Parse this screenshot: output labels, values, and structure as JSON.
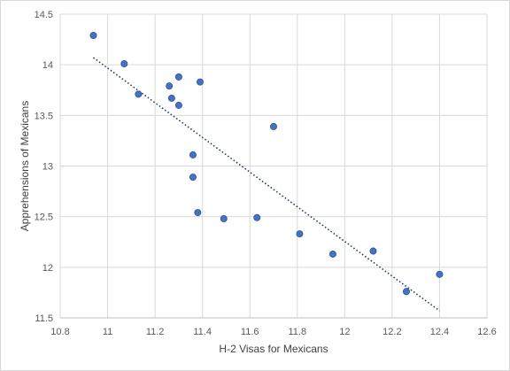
{
  "chart_data": {
    "type": "scatter",
    "title": "",
    "xlabel": "H-2 Visas for Mexicans",
    "ylabel": "Apprehensions of Mexicans",
    "xlim": [
      10.8,
      12.6
    ],
    "ylim": [
      11.5,
      14.5
    ],
    "xticks": [
      "10.8",
      "11",
      "11.2",
      "11.4",
      "11.6",
      "11.8",
      "12",
      "12.2",
      "12.4",
      "12.6"
    ],
    "yticks": [
      "11.5",
      "12",
      "12.5",
      "13",
      "13.5",
      "14",
      "14.5"
    ],
    "grid": true,
    "legend": "none",
    "marker_color": "#4472c4",
    "trendline": {
      "type": "linear",
      "style": "dotted",
      "color": "#1f3864",
      "start": [
        10.94,
        14.07
      ],
      "end": [
        12.4,
        11.57
      ]
    },
    "points": [
      {
        "x": 10.94,
        "y": 14.29
      },
      {
        "x": 11.07,
        "y": 14.01
      },
      {
        "x": 11.13,
        "y": 13.71
      },
      {
        "x": 11.26,
        "y": 13.79
      },
      {
        "x": 11.27,
        "y": 13.67
      },
      {
        "x": 11.3,
        "y": 13.88
      },
      {
        "x": 11.3,
        "y": 13.6
      },
      {
        "x": 11.39,
        "y": 13.83
      },
      {
        "x": 11.36,
        "y": 13.11
      },
      {
        "x": 11.36,
        "y": 12.89
      },
      {
        "x": 11.38,
        "y": 12.54
      },
      {
        "x": 11.49,
        "y": 12.48
      },
      {
        "x": 11.63,
        "y": 12.49
      },
      {
        "x": 11.7,
        "y": 13.39
      },
      {
        "x": 11.81,
        "y": 12.33
      },
      {
        "x": 11.95,
        "y": 12.13
      },
      {
        "x": 12.12,
        "y": 12.16
      },
      {
        "x": 12.26,
        "y": 11.76
      },
      {
        "x": 12.4,
        "y": 11.93
      }
    ]
  }
}
